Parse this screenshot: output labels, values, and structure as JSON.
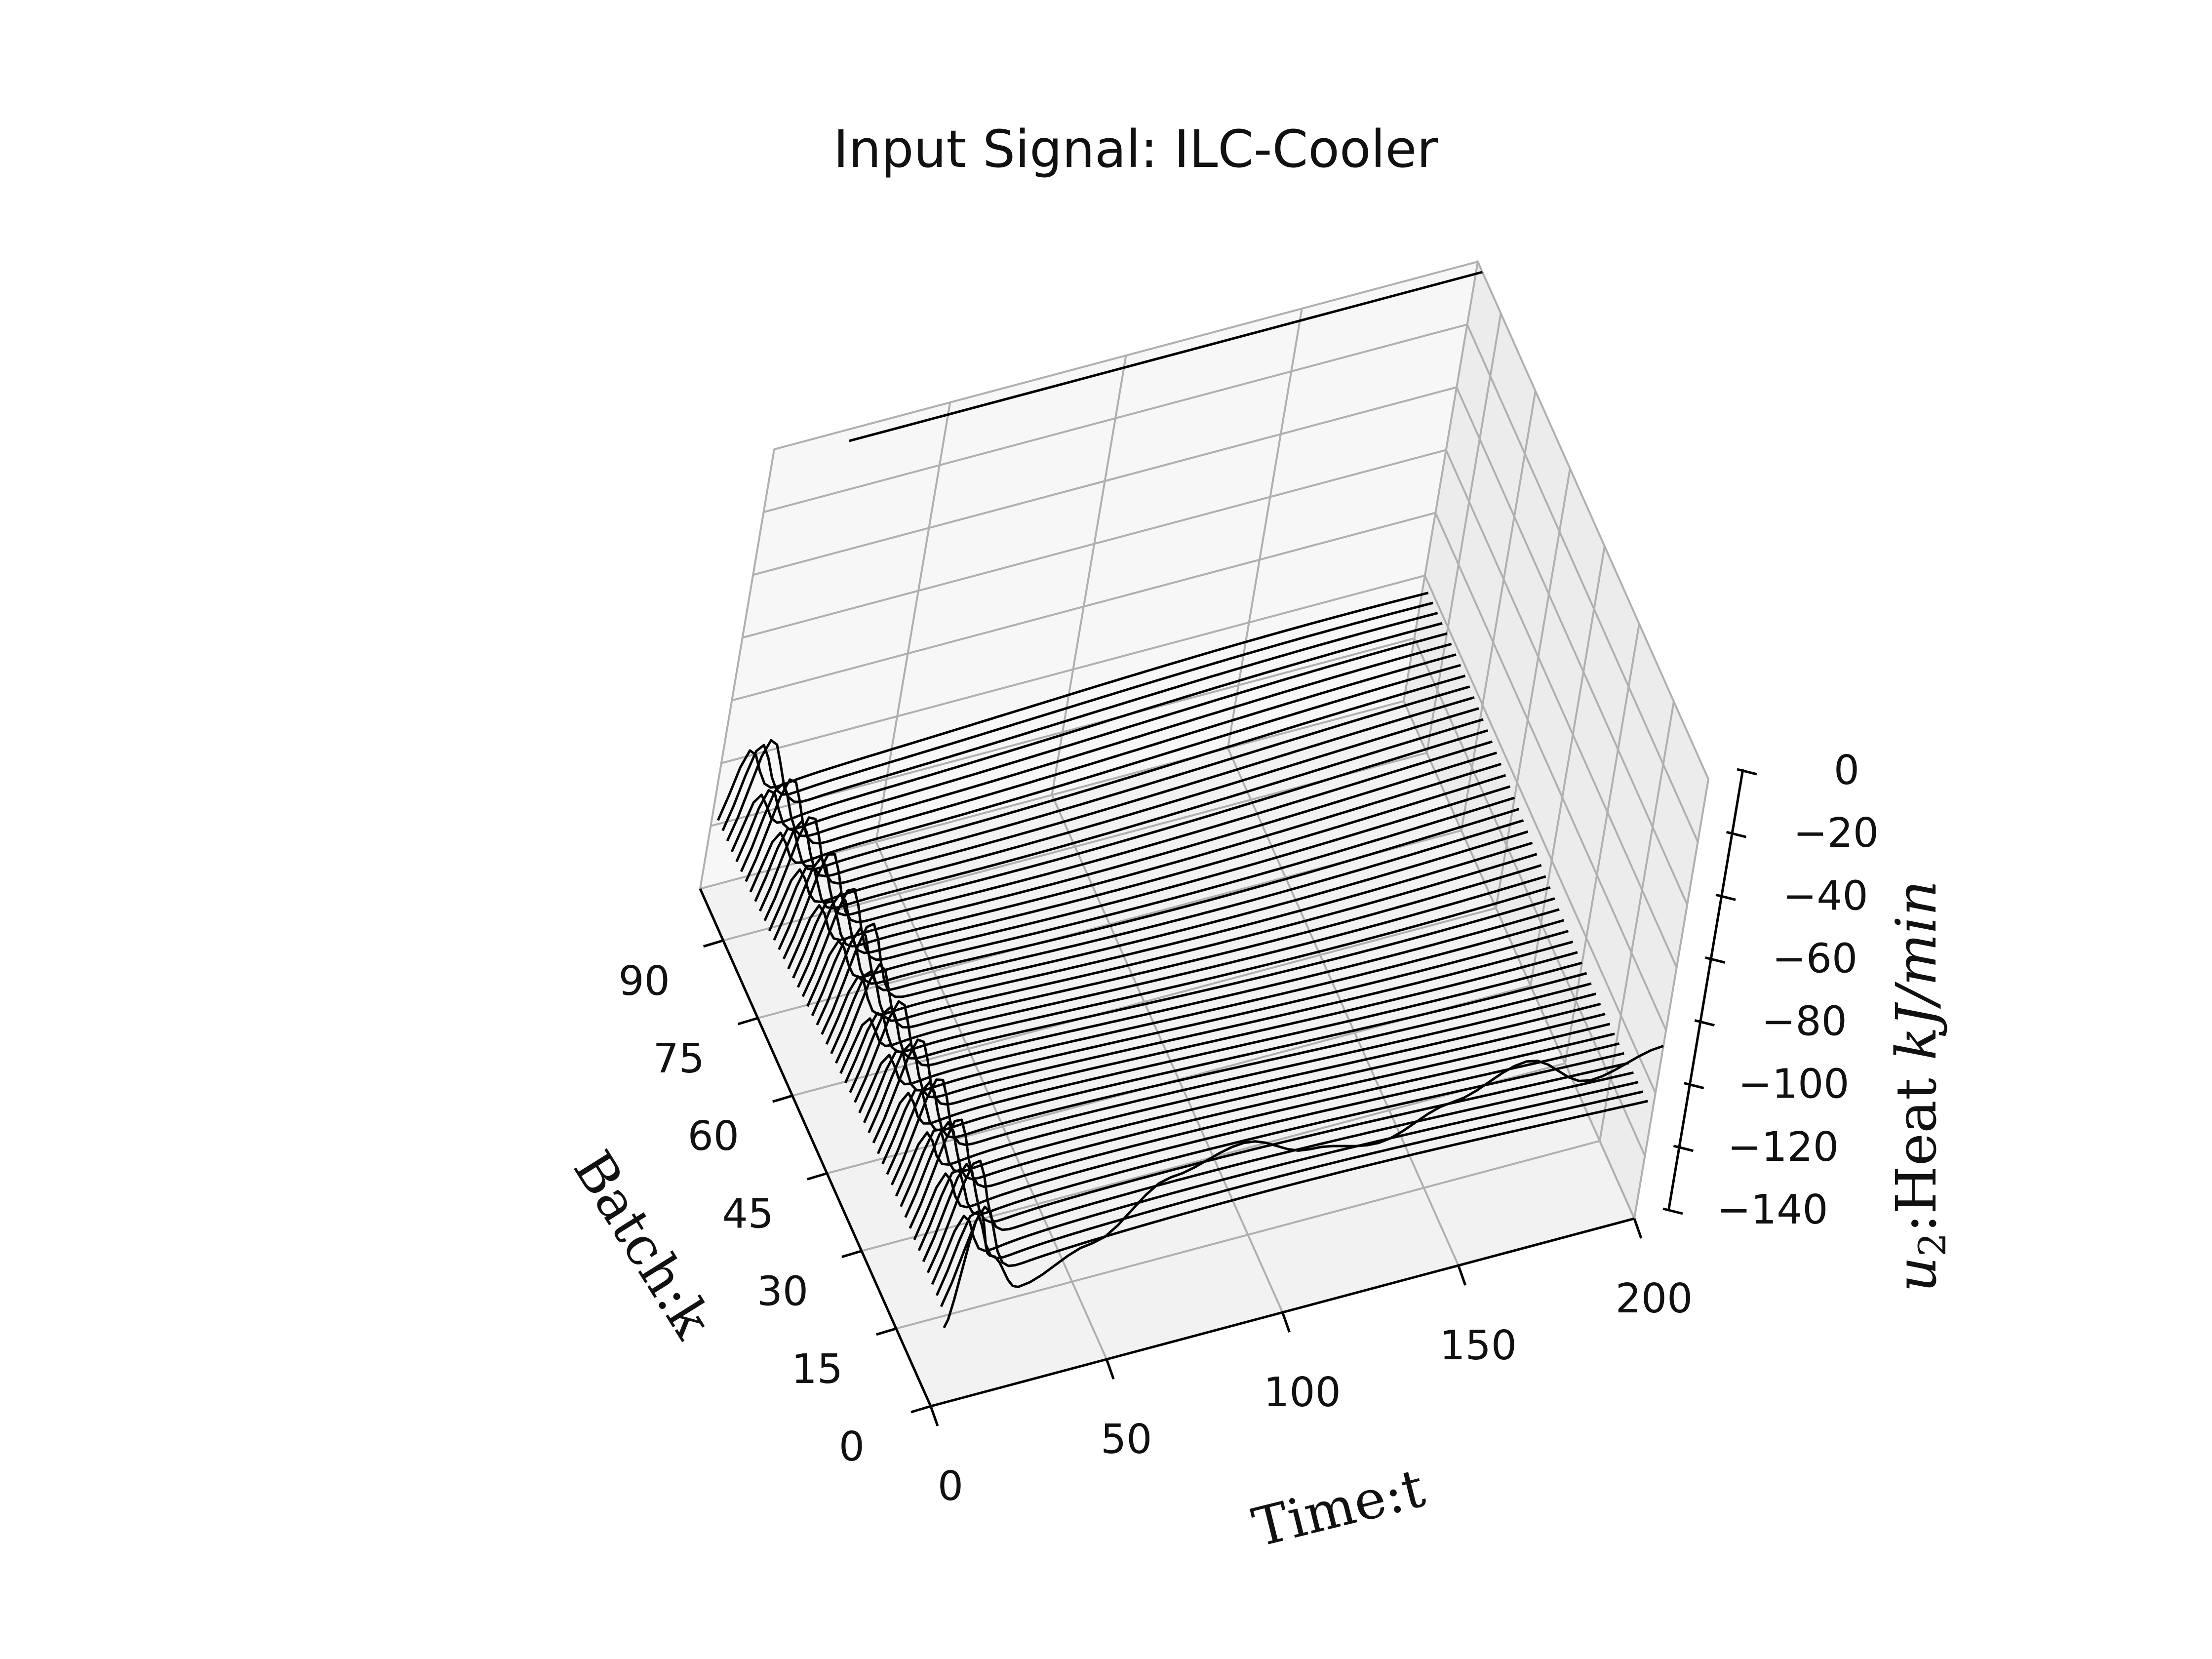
{
  "chart_data": {
    "type": "3d-waterfall-line",
    "title": "Input Signal: ILC-Cooler",
    "xlabel": "Time:t",
    "ylabel": "Batch:k",
    "zlabel": "u2:Heat kJ/min",
    "zlabel_parts": {
      "symbol": "u",
      "subscript": "2",
      "separator": ":",
      "quantity": "Heat",
      "unit": "kJ/min"
    },
    "x_ticks": [
      "0",
      "50",
      "100",
      "150",
      "200"
    ],
    "y_ticks": [
      "0",
      "15",
      "30",
      "45",
      "60",
      "75",
      "90"
    ],
    "z_ticks": [
      "0",
      "−20",
      "−40",
      "−60",
      "−80",
      "−100",
      "−120",
      "−140"
    ],
    "xlim": [
      0,
      200
    ],
    "ylim": [
      0,
      100
    ],
    "zlim": [
      -140,
      0
    ],
    "grid": true,
    "view": {
      "elev": 40,
      "azim": -110
    },
    "line_color": "#000000",
    "series_description_batches": [
      0,
      2,
      4,
      6,
      8,
      10,
      12,
      14,
      16,
      18,
      20,
      22,
      24,
      26,
      28,
      30,
      32,
      34,
      36,
      38,
      40,
      42,
      44,
      46,
      48,
      50,
      52,
      54,
      56,
      58,
      60,
      62,
      64,
      66,
      68,
      70,
      72,
      74,
      76,
      78,
      80,
      82,
      84,
      86,
      88,
      90,
      92,
      94,
      96,
      98
    ],
    "profile": {
      "steady_level": -105,
      "initial_level": -115,
      "initial_peak": -75,
      "peak_time": 5,
      "end_time": 200
    },
    "batch0_profile": {
      "t": [
        0,
        5,
        10,
        20,
        40,
        60,
        80,
        100,
        120,
        140,
        160,
        180,
        200
      ],
      "u": [
        -115,
        -80,
        -95,
        -108,
        -100,
        -85,
        -80,
        -88,
        -92,
        -85,
        -78,
        -90,
        -85
      ]
    },
    "special_trace": {
      "batch": 98,
      "t": [
        20,
        200
      ],
      "u": [
        0,
        0
      ]
    }
  }
}
